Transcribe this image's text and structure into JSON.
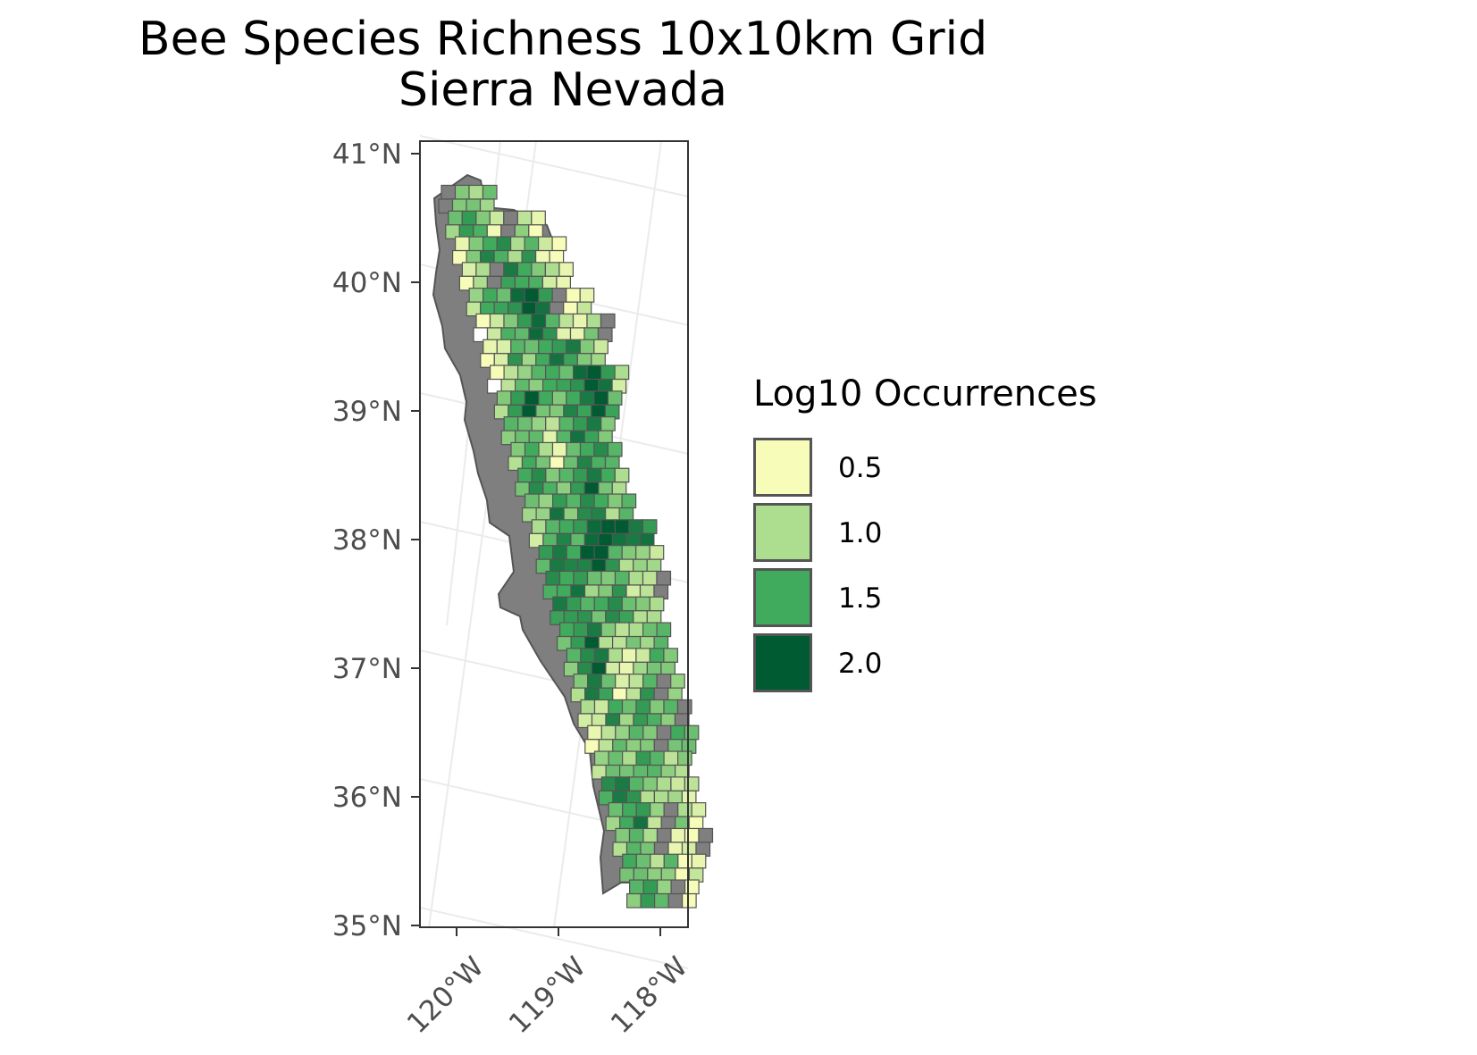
{
  "title": {
    "line1": "Bee Species Richness 10x10km Grid",
    "line2": "Sierra Nevada"
  },
  "axes": {
    "y_ticks": [
      "41°N",
      "40°N",
      "39°N",
      "38°N",
      "37°N",
      "36°N",
      "35°N"
    ],
    "x_ticks": [
      "120°W",
      "119°W",
      "118°W"
    ]
  },
  "legend": {
    "title": "Log10 Occurrences",
    "entries": [
      {
        "label": "0.5",
        "color": "#f7fcb9"
      },
      {
        "label": "1.0",
        "color": "#addd8e"
      },
      {
        "label": "1.5",
        "color": "#41ab5d"
      },
      {
        "label": "2.0",
        "color": "#005a32"
      }
    ]
  },
  "colors": {
    "no_data": "#7f7f7f",
    "zero": "#ffffff",
    "outline": "#555555",
    "graticule": "#ebebeb",
    "panel_border": "#333333"
  },
  "chart_data": {
    "type": "heatmap",
    "title": "Bee Species Richness 10x10km Grid\nSierra Nevada",
    "value_label": "Log10 Occurrences",
    "lat_range": [
      35,
      41
    ],
    "lon_range": [
      -120.4,
      -117.9
    ],
    "legend_breaks": [
      0.5,
      1.0,
      1.5,
      2.0
    ],
    "approx_grid_rows_north_to_south": [
      {
        "lat": 40.7,
        "values": [
          null,
          1.2,
          1.0,
          1.3
        ]
      },
      {
        "lat": 40.5,
        "values": [
          1.3,
          1.6,
          1.2,
          0.8,
          null,
          0.9,
          0.6
        ]
      },
      {
        "lat": 40.3,
        "values": [
          0.6,
          1.2,
          1.5,
          1.7,
          1.0,
          1.4,
          0.8,
          0.5
        ]
      },
      {
        "lat": 40.1,
        "values": [
          0.7,
          1.0,
          null,
          1.8,
          1.5,
          1.2,
          1.0,
          0.6
        ]
      },
      {
        "lat": 39.9,
        "values": [
          1.1,
          1.5,
          1.3,
          1.9,
          2.0,
          1.6,
          null,
          0.5,
          0.6
        ]
      },
      {
        "lat": 39.7,
        "values": [
          0.5,
          0.8,
          1.2,
          1.6,
          1.9,
          1.4,
          0.9,
          0.6,
          1.0,
          null
        ]
      },
      {
        "lat": 39.5,
        "values": [
          0.6,
          0.7,
          1.4,
          1.3,
          1.5,
          1.6,
          1.8,
          1.2,
          0.8
        ]
      },
      {
        "lat": 39.3,
        "values": [
          0.5,
          0.9,
          1.1,
          1.4,
          1.5,
          1.3,
          1.9,
          2.0,
          1.6,
          1.0
        ]
      },
      {
        "lat": 39.1,
        "values": [
          1.2,
          1.6,
          2.1,
          1.5,
          1.2,
          1.5,
          1.8,
          2.0,
          1.3
        ]
      },
      {
        "lat": 38.9,
        "values": [
          1.4,
          1.3,
          1.1,
          0.9,
          1.4,
          1.6,
          1.8,
          1.2
        ]
      },
      {
        "lat": 38.7,
        "values": [
          1.2,
          1.5,
          1.0,
          0.6,
          1.3,
          1.5,
          1.7,
          1.4
        ]
      },
      {
        "lat": 38.5,
        "values": [
          1.5,
          1.7,
          1.2,
          1.4,
          1.6,
          1.8,
          1.5,
          1.0
        ]
      },
      {
        "lat": 38.3,
        "values": [
          1.3,
          1.1,
          1.6,
          1.4,
          1.7,
          1.5,
          1.2,
          1.4
        ]
      },
      {
        "lat": 38.1,
        "values": [
          1.0,
          1.4,
          1.5,
          1.6,
          1.9,
          2.0,
          2.1,
          1.8,
          1.6
        ]
      },
      {
        "lat": 37.9,
        "values": [
          1.6,
          1.8,
          1.5,
          2.0,
          2.0,
          1.4,
          1.2,
          1.1,
          0.8
        ]
      },
      {
        "lat": 37.7,
        "values": [
          1.7,
          1.5,
          1.6,
          1.3,
          1.2,
          1.4,
          1.0,
          0.9,
          null
        ]
      },
      {
        "lat": 37.5,
        "values": [
          1.8,
          1.6,
          1.4,
          1.5,
          1.7,
          1.3,
          1.2,
          1.0
        ]
      },
      {
        "lat": 37.3,
        "values": [
          1.5,
          1.6,
          1.8,
          1.2,
          0.9,
          1.0,
          1.3,
          1.4
        ]
      },
      {
        "lat": 37.1,
        "values": [
          1.4,
          1.7,
          1.8,
          1.0,
          0.6,
          0.8,
          1.5,
          1.2
        ]
      },
      {
        "lat": 36.9,
        "values": [
          1.2,
          1.8,
          1.3,
          0.7,
          0.9,
          1.4,
          null,
          1.1
        ]
      },
      {
        "lat": 36.7,
        "values": [
          1.0,
          0.8,
          1.5,
          1.3,
          1.6,
          1.2,
          1.4,
          null
        ]
      },
      {
        "lat": 36.5,
        "values": [
          0.6,
          0.9,
          1.1,
          1.4,
          1.2,
          null,
          1.5,
          1.3
        ]
      },
      {
        "lat": 36.3,
        "values": [
          1.1,
          1.3,
          1.0,
          1.6,
          1.4,
          0.9,
          1.2
        ]
      },
      {
        "lat": 36.1,
        "values": [
          1.7,
          1.8,
          1.4,
          1.2,
          1.0,
          0.8,
          0.9
        ]
      },
      {
        "lat": 35.9,
        "values": [
          1.3,
          1.5,
          1.6,
          1.1,
          null,
          1.0,
          0.7
        ]
      },
      {
        "lat": 35.7,
        "values": [
          1.2,
          1.4,
          1.0,
          null,
          0.6,
          0.5,
          null
        ]
      },
      {
        "lat": 35.5,
        "values": [
          1.5,
          1.3,
          0.9,
          1.4,
          0.5,
          0.6
        ]
      },
      {
        "lat": 35.3,
        "values": [
          1.4,
          1.6,
          1.1,
          null,
          0.5
        ]
      }
    ]
  }
}
